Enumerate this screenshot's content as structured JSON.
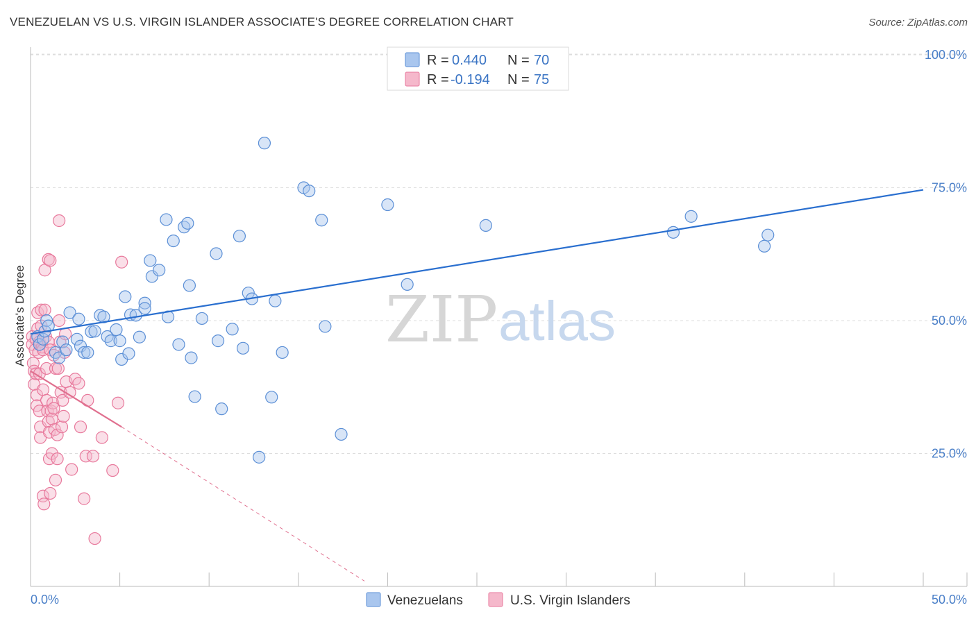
{
  "header": {
    "title": "VENEZUELAN VS U.S. VIRGIN ISLANDER ASSOCIATE'S DEGREE CORRELATION CHART",
    "source": "Source: ZipAtlas.com"
  },
  "watermark": {
    "zip": "ZIP",
    "atlas": "atlas"
  },
  "legend": {
    "r_label": "R =",
    "n_label": "N =",
    "rows": [
      {
        "r": "0.440",
        "n": "70"
      },
      {
        "r": "-0.194",
        "n": "75"
      }
    ]
  },
  "colors": {
    "venezuelan_fill": "#a9c6ee",
    "venezuelan_stroke": "#5b8fd6",
    "venezuelan_line": "#2a6fcf",
    "virgin_fill": "#f5b8cb",
    "virgin_stroke": "#e8799c",
    "virgin_line": "#e0708f",
    "tick_text": "#4a7fc8",
    "grid": "#dddddd"
  },
  "chart_data": {
    "type": "scatter",
    "title": "VENEZUELAN VS U.S. VIRGIN ISLANDER ASSOCIATE'S DEGREE CORRELATION CHART",
    "xlabel": "",
    "ylabel": "Associate's Degree",
    "xlim": [
      0,
      50
    ],
    "ylim": [
      0,
      105
    ],
    "x_tick_labels": [
      "0.0%",
      "50.0%"
    ],
    "y_ticks": [
      25,
      50,
      75,
      100
    ],
    "y_tick_labels": [
      "25.0%",
      "50.0%",
      "75.0%",
      "100.0%"
    ],
    "legend_position": "top-center",
    "series": [
      {
        "name": "Venezuelans",
        "r": 0.44,
        "n": 70,
        "trend": {
          "x": [
            0,
            50
          ],
          "y": [
            47.5,
            74.6
          ],
          "dashed_extension": false
        },
        "points": [
          [
            0.4,
            47.0
          ],
          [
            0.5,
            45.5
          ],
          [
            0.7,
            46.5
          ],
          [
            0.8,
            48.0
          ],
          [
            0.9,
            50.0
          ],
          [
            1.0,
            49.0
          ],
          [
            1.4,
            44.0
          ],
          [
            1.6,
            43.0
          ],
          [
            1.8,
            46.0
          ],
          [
            2.0,
            44.5
          ],
          [
            2.2,
            51.5
          ],
          [
            2.6,
            46.5
          ],
          [
            2.7,
            50.3
          ],
          [
            2.8,
            45.2
          ],
          [
            3.0,
            44.0
          ],
          [
            3.2,
            44.0
          ],
          [
            3.4,
            47.9
          ],
          [
            3.6,
            48.0
          ],
          [
            3.9,
            51.0
          ],
          [
            4.1,
            50.7
          ],
          [
            4.3,
            47.0
          ],
          [
            4.5,
            46.2
          ],
          [
            4.8,
            48.3
          ],
          [
            5.0,
            46.2
          ],
          [
            5.1,
            42.7
          ],
          [
            5.3,
            54.5
          ],
          [
            5.5,
            43.8
          ],
          [
            5.6,
            51.1
          ],
          [
            5.9,
            51.0
          ],
          [
            6.1,
            46.9
          ],
          [
            6.4,
            53.3
          ],
          [
            6.4,
            52.3
          ],
          [
            6.7,
            61.3
          ],
          [
            6.8,
            58.3
          ],
          [
            7.2,
            59.5
          ],
          [
            7.6,
            69.0
          ],
          [
            7.7,
            50.7
          ],
          [
            8.0,
            65.0
          ],
          [
            8.3,
            45.5
          ],
          [
            8.6,
            67.6
          ],
          [
            8.8,
            68.3
          ],
          [
            8.9,
            56.6
          ],
          [
            9.0,
            43.0
          ],
          [
            9.2,
            35.7
          ],
          [
            9.6,
            50.4
          ],
          [
            10.4,
            62.6
          ],
          [
            10.5,
            46.2
          ],
          [
            10.7,
            33.4
          ],
          [
            11.3,
            48.4
          ],
          [
            11.7,
            65.9
          ],
          [
            11.9,
            44.8
          ],
          [
            12.2,
            55.2
          ],
          [
            12.4,
            54.1
          ],
          [
            12.8,
            24.3
          ],
          [
            13.1,
            83.4
          ],
          [
            13.5,
            35.6
          ],
          [
            13.7,
            53.7
          ],
          [
            14.1,
            44.0
          ],
          [
            15.3,
            75.0
          ],
          [
            15.6,
            74.4
          ],
          [
            16.3,
            68.9
          ],
          [
            16.5,
            48.9
          ],
          [
            17.4,
            28.6
          ],
          [
            20.0,
            71.8
          ],
          [
            21.1,
            56.8
          ],
          [
            25.5,
            67.9
          ],
          [
            36.0,
            66.6
          ],
          [
            37.0,
            69.6
          ],
          [
            41.1,
            64.0
          ],
          [
            41.3,
            66.1
          ]
        ]
      },
      {
        "name": "U.S. Virgin Islanders",
        "r": -0.194,
        "n": 75,
        "trend": {
          "x": [
            0,
            5.1
          ],
          "y": [
            40.5,
            30.0
          ],
          "dashed_to": [
            18.7,
            1.0
          ]
        },
        "points": [
          [
            0.1,
            47.0
          ],
          [
            0.1,
            45.5
          ],
          [
            0.15,
            42.0
          ],
          [
            0.2,
            40.5
          ],
          [
            0.2,
            38.0
          ],
          [
            0.25,
            44.5
          ],
          [
            0.3,
            46.5
          ],
          [
            0.3,
            40.0
          ],
          [
            0.35,
            36.0
          ],
          [
            0.35,
            34.0
          ],
          [
            0.4,
            51.5
          ],
          [
            0.4,
            48.5
          ],
          [
            0.45,
            44.0
          ],
          [
            0.5,
            46.0
          ],
          [
            0.5,
            40.0
          ],
          [
            0.5,
            33.0
          ],
          [
            0.55,
            30.0
          ],
          [
            0.55,
            28.0
          ],
          [
            0.6,
            52.0
          ],
          [
            0.6,
            49.0
          ],
          [
            0.65,
            45.0
          ],
          [
            0.7,
            44.5
          ],
          [
            0.7,
            37.0
          ],
          [
            0.7,
            17.0
          ],
          [
            0.75,
            15.5
          ],
          [
            0.8,
            59.5
          ],
          [
            0.8,
            52.0
          ],
          [
            0.85,
            47.0
          ],
          [
            0.9,
            41.0
          ],
          [
            0.9,
            35.0
          ],
          [
            0.95,
            33.0
          ],
          [
            1.0,
            61.5
          ],
          [
            1.0,
            46.0
          ],
          [
            1.0,
            31.0
          ],
          [
            1.05,
            29.0
          ],
          [
            1.05,
            24.0
          ],
          [
            1.1,
            61.3
          ],
          [
            1.1,
            44.5
          ],
          [
            1.1,
            17.5
          ],
          [
            1.15,
            33.0
          ],
          [
            1.2,
            31.5
          ],
          [
            1.2,
            25.0
          ],
          [
            1.25,
            34.5
          ],
          [
            1.3,
            43.5
          ],
          [
            1.3,
            33.5
          ],
          [
            1.35,
            29.5
          ],
          [
            1.4,
            20.0
          ],
          [
            1.4,
            41.0
          ],
          [
            1.5,
            24.0
          ],
          [
            1.5,
            28.5
          ],
          [
            1.55,
            41.0
          ],
          [
            1.6,
            50.0
          ],
          [
            1.7,
            36.5
          ],
          [
            1.8,
            35.0
          ],
          [
            1.9,
            44.0
          ],
          [
            1.75,
            30.0
          ],
          [
            1.65,
            46.0
          ],
          [
            1.85,
            32.0
          ],
          [
            1.95,
            47.5
          ],
          [
            2.0,
            38.5
          ],
          [
            2.2,
            36.5
          ],
          [
            2.3,
            22.0
          ],
          [
            2.5,
            39.0
          ],
          [
            2.7,
            38.2
          ],
          [
            3.0,
            16.5
          ],
          [
            3.2,
            35.0
          ],
          [
            2.8,
            30.0
          ],
          [
            3.6,
            9.0
          ],
          [
            3.1,
            24.5
          ],
          [
            3.5,
            24.5
          ],
          [
            4.6,
            21.8
          ],
          [
            4.9,
            34.5
          ],
          [
            5.1,
            61.0
          ],
          [
            4.0,
            28.0
          ],
          [
            1.6,
            68.8
          ]
        ]
      }
    ]
  },
  "bottom_legend": {
    "items": [
      "Venezuelans",
      "U.S. Virgin Islanders"
    ]
  }
}
